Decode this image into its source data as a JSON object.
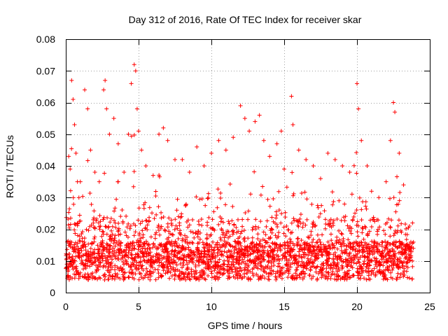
{
  "chart_data": {
    "type": "scatter",
    "title": "Day 312 of 2016, Rate Of TEC Index for receiver skar",
    "xlabel": "GPS time / hours",
    "ylabel": "ROTI / TECUs",
    "xlim": [
      0,
      25
    ],
    "ylim": [
      0,
      0.08
    ],
    "x_ticks": [
      "0",
      "5",
      "10",
      "15",
      "20",
      "25"
    ],
    "y_ticks": [
      "0",
      "0.01",
      "0.02",
      "0.03",
      "0.04",
      "0.05",
      "0.06",
      "0.07",
      "0.08"
    ],
    "grid": true,
    "marker": "plus",
    "color": "#ff0000",
    "x_range_of_data": [
      0,
      23.9
    ],
    "series": [
      {
        "name": "ROTI",
        "points": [
          [
            0.1,
            0.016
          ],
          [
            0.2,
            0.043
          ],
          [
            0.3,
            0.039
          ],
          [
            0.4,
            0.067
          ],
          [
            0.5,
            0.061
          ],
          [
            0.6,
            0.053
          ],
          [
            0.7,
            0.044
          ],
          [
            0.8,
            0.035
          ],
          [
            0.9,
            0.03
          ],
          [
            1.0,
            0.035
          ],
          [
            1.3,
            0.064
          ],
          [
            1.5,
            0.058
          ],
          [
            1.7,
            0.045
          ],
          [
            2.0,
            0.038
          ],
          [
            2.3,
            0.035
          ],
          [
            2.6,
            0.064
          ],
          [
            2.7,
            0.067
          ],
          [
            2.8,
            0.058
          ],
          [
            3.0,
            0.05
          ],
          [
            3.3,
            0.055
          ],
          [
            3.6,
            0.047
          ],
          [
            4.0,
            0.038
          ],
          [
            4.3,
            0.05
          ],
          [
            4.5,
            0.066
          ],
          [
            4.7,
            0.072
          ],
          [
            4.8,
            0.07
          ],
          [
            4.9,
            0.058
          ],
          [
            5.0,
            0.051
          ],
          [
            5.2,
            0.045
          ],
          [
            5.5,
            0.04
          ],
          [
            6.0,
            0.037
          ],
          [
            6.4,
            0.05
          ],
          [
            6.7,
            0.052
          ],
          [
            7.0,
            0.048
          ],
          [
            7.5,
            0.042
          ],
          [
            8.0,
            0.042
          ],
          [
            8.5,
            0.038
          ],
          [
            9.0,
            0.046
          ],
          [
            9.5,
            0.04
          ],
          [
            10.0,
            0.044
          ],
          [
            10.5,
            0.048
          ],
          [
            11.0,
            0.045
          ],
          [
            11.5,
            0.049
          ],
          [
            12.0,
            0.059
          ],
          [
            12.3,
            0.055
          ],
          [
            12.6,
            0.051
          ],
          [
            13.0,
            0.054
          ],
          [
            13.3,
            0.056
          ],
          [
            13.6,
            0.048
          ],
          [
            14.0,
            0.043
          ],
          [
            14.5,
            0.047
          ],
          [
            14.8,
            0.051
          ],
          [
            15.0,
            0.039
          ],
          [
            15.5,
            0.062
          ],
          [
            15.6,
            0.053
          ],
          [
            16.0,
            0.045
          ],
          [
            16.5,
            0.042
          ],
          [
            17.0,
            0.04
          ],
          [
            17.5,
            0.036
          ],
          [
            18.0,
            0.044
          ],
          [
            18.5,
            0.042
          ],
          [
            19.0,
            0.04
          ],
          [
            19.5,
            0.038
          ],
          [
            20.0,
            0.066
          ],
          [
            20.1,
            0.058
          ],
          [
            20.3,
            0.048
          ],
          [
            20.7,
            0.04
          ],
          [
            21.0,
            0.032
          ],
          [
            21.5,
            0.03
          ],
          [
            22.0,
            0.035
          ],
          [
            22.3,
            0.048
          ],
          [
            22.5,
            0.06
          ],
          [
            22.6,
            0.057
          ],
          [
            22.9,
            0.044
          ],
          [
            23.2,
            0.034
          ],
          [
            23.6,
            0.021
          ],
          [
            23.8,
            0.01
          ]
        ]
      }
    ]
  }
}
